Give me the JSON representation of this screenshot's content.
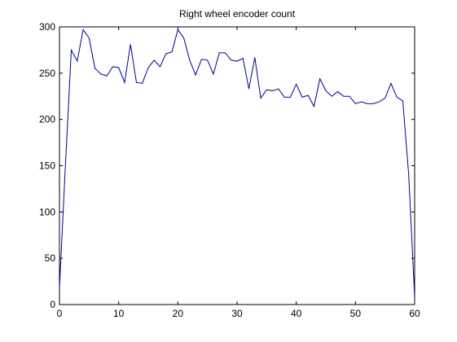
{
  "chart_data": {
    "type": "line",
    "title": "Right wheel encoder count",
    "xlabel": "",
    "ylabel": "",
    "xlim": [
      0,
      60
    ],
    "ylim": [
      0,
      300
    ],
    "xticks": [
      0,
      10,
      20,
      30,
      40,
      50,
      60
    ],
    "yticks": [
      0,
      50,
      100,
      150,
      200,
      250,
      300
    ],
    "grid": false,
    "series": [
      {
        "color": "#00008b",
        "x": [
          0,
          1,
          2,
          3,
          4,
          5,
          6,
          7,
          8,
          9,
          10,
          11,
          12,
          13,
          14,
          15,
          16,
          17,
          18,
          19,
          20,
          21,
          22,
          23,
          24,
          25,
          26,
          27,
          28,
          29,
          30,
          31,
          32,
          33,
          34,
          35,
          36,
          37,
          38,
          39,
          40,
          41,
          42,
          43,
          44,
          45,
          46,
          47,
          48,
          49,
          50,
          51,
          52,
          53,
          54,
          55,
          56,
          57,
          58,
          59,
          60
        ],
        "y": [
          18,
          150,
          275,
          263,
          297,
          288,
          255,
          249,
          247,
          257,
          256,
          240,
          281,
          240,
          239,
          256,
          264,
          257,
          271,
          273,
          297,
          288,
          264,
          248,
          265,
          264,
          249,
          272,
          272,
          264,
          263,
          266,
          233,
          267,
          223,
          232,
          231,
          233,
          224,
          224,
          238,
          224,
          226,
          214,
          244,
          231,
          225,
          230,
          225,
          225,
          217,
          219,
          217,
          217,
          219,
          223,
          239,
          224,
          220,
          140,
          8
        ]
      }
    ]
  }
}
